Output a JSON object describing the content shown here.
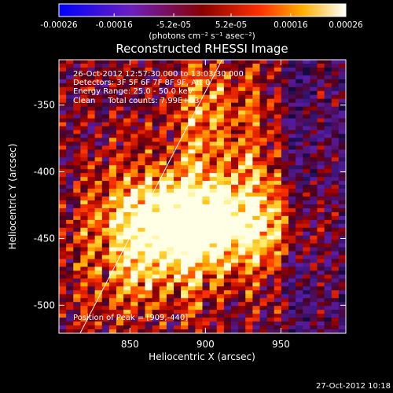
{
  "chart_data": {
    "type": "heatmap",
    "title": "Reconstructed RHESSI Image",
    "xlabel": "Heliocentric X (arcsec)",
    "ylabel": "Heliocentric Y (arcsec)",
    "xlim": [
      803,
      993
    ],
    "ylim": [
      -521,
      -316
    ],
    "xticks": [
      850,
      900,
      950
    ],
    "yticks": [
      -350,
      -400,
      -450,
      -500
    ],
    "colorbar": {
      "ticks": [
        "-0.00026",
        "-0.00016",
        "-5.2e-05",
        "5.2e-05",
        "0.00016",
        "0.00026"
      ],
      "tick_values": [
        -0.00026,
        -0.00016,
        -5.2e-05,
        5.2e-05,
        0.00016,
        0.00026
      ],
      "range": [
        -0.00026,
        0.00026
      ],
      "unit_label": "(photons cm⁻² s⁻¹ asec⁻²)",
      "colormap": "blue-purple-red-orange-yellow-white"
    },
    "annotations": [
      "26-Oct-2012 12:57:30.000 to 13:03:30.000",
      "Detectors: 3F 5F 6F 7F 8F 9F, Att 0",
      "Energy Range: 25.0 - 50.0 keV",
      "Clean     Total counts: 7.99E+03"
    ],
    "peak_label": "Position of Peak = [909,-440]",
    "peak": [
      909,
      -440
    ],
    "limb_line": {
      "points": [
        [
          817,
          -521
        ],
        [
          911,
          -316
        ]
      ]
    },
    "timestamp": "27-Oct-2012 10:18"
  }
}
